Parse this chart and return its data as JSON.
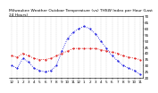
{
  "title": "Milwaukee Weather Outdoor Temperature (vs) THSW Index per Hour (Last 24 Hours)",
  "hours": [
    0,
    1,
    2,
    3,
    4,
    5,
    6,
    7,
    8,
    9,
    10,
    11,
    12,
    13,
    14,
    15,
    16,
    17,
    18,
    19,
    20,
    21,
    22,
    23
  ],
  "hour_labels": [
    "12",
    "1",
    "2",
    "3",
    "4",
    "5",
    "6",
    "7",
    "8",
    "9",
    "10",
    "11",
    "12",
    "1",
    "2",
    "3",
    "4",
    "5",
    "6",
    "7",
    "8",
    "9",
    "10",
    "11"
  ],
  "temp_outdoor": [
    38,
    37,
    40,
    38,
    36,
    35,
    35,
    36,
    38,
    40,
    42,
    44,
    44,
    44,
    44,
    44,
    43,
    42,
    41,
    40,
    38,
    37,
    36,
    35
  ],
  "thsw_index": [
    30,
    28,
    36,
    33,
    28,
    26,
    25,
    26,
    30,
    42,
    52,
    57,
    60,
    62,
    60,
    56,
    50,
    44,
    38,
    34,
    30,
    28,
    26,
    23
  ],
  "temp_color": "#dd0000",
  "thsw_color": "#0000dd",
  "ylim_min": 20,
  "ylim_max": 70,
  "yticks": [
    20,
    25,
    30,
    35,
    40,
    45,
    50,
    55,
    60,
    65,
    70
  ],
  "ytick_labels": [
    "20",
    "25",
    "30",
    "35",
    "40",
    "45",
    "50",
    "55",
    "60",
    "65",
    "70"
  ],
  "bg_color": "#ffffff",
  "plot_bg_color": "#ffffff",
  "grid_color": "#aaaaaa",
  "title_fontsize": 3.2,
  "tick_fontsize": 3.0,
  "linewidth": 0.6,
  "marker": ".",
  "markersize": 1.0
}
